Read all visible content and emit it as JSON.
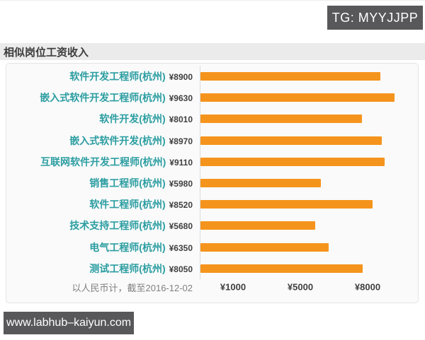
{
  "watermark_top": {
    "text": "TG: MYYJJPP"
  },
  "header": {
    "title": "相似岗位工资收入"
  },
  "chart_data": {
    "type": "bar",
    "orientation": "horizontal",
    "title": "相似岗位工资收入",
    "categories": [
      "软件开发工程师(杭州)",
      "嵌入式软件开发工程师(杭州)",
      "软件开发(杭州)",
      "嵌入式软件开发(杭州)",
      "互联网软件开发工程师(杭州)",
      "销售工程师(杭州)",
      "软件工程师(杭州)",
      "技术支持工程师(杭州)",
      "电气工程师(杭州)",
      "测试工程师(杭州)"
    ],
    "values": [
      8900,
      9630,
      8010,
      8970,
      9110,
      5980,
      8520,
      5680,
      6350,
      8050
    ],
    "value_prefix": "¥",
    "x_ticks": [
      "¥1000",
      "¥5000",
      "¥8000"
    ],
    "note": "以人民币计，截至2016-12-02",
    "bar_color": "#f5941d",
    "category_color": "#2b9da1",
    "value_color": "#3f3f3f",
    "grid": "off",
    "legend": "none"
  },
  "watermark_bottom": {
    "text": "www.labhub–kaiyun.com"
  }
}
